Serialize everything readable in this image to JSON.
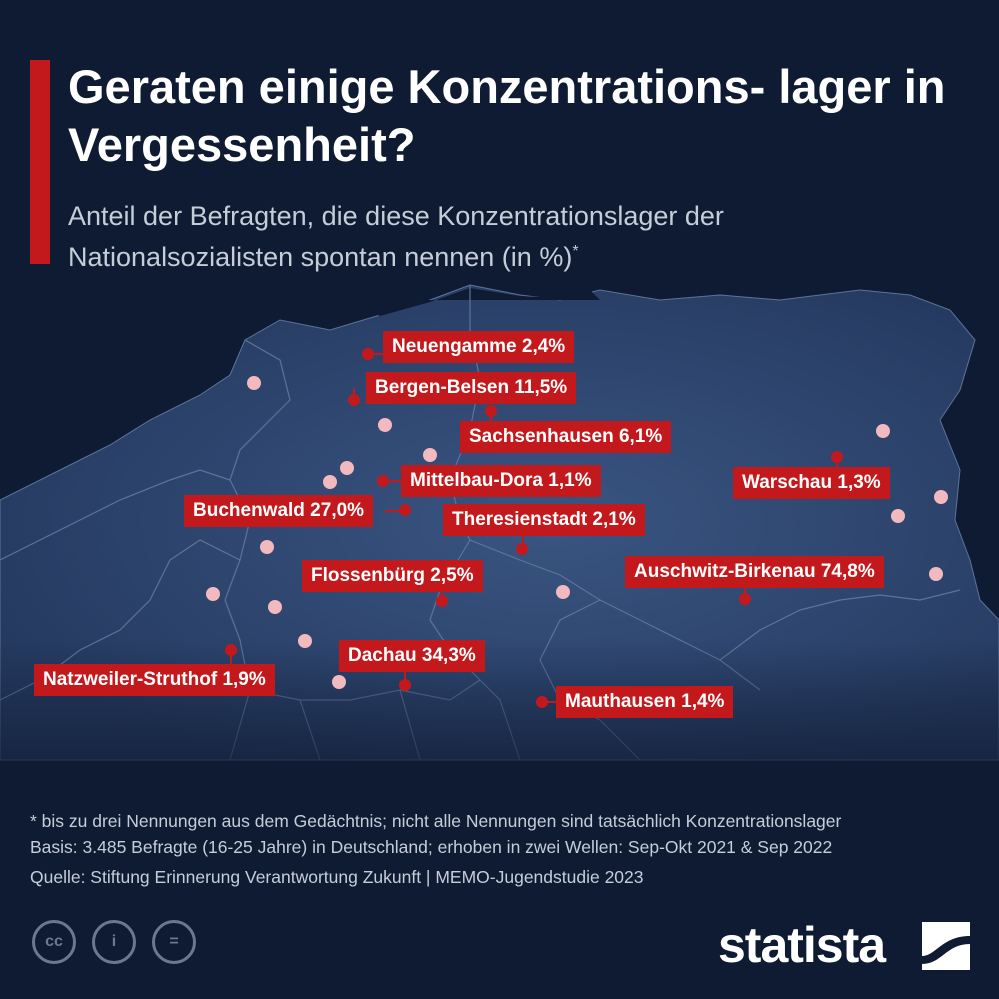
{
  "header": {
    "title": "Geraten einige Konzentrations- lager in Vergessenheit?",
    "subtitle": "Anteil der Befragten, die diese Konzentrationslager der Nationalsozialisten spontan nennen (in %)",
    "subtitle_mark": "*"
  },
  "camps": [
    {
      "name": "Neuengamme",
      "value": 2.4,
      "label": "Neuengamme 2,4%"
    },
    {
      "name": "Bergen-Belsen",
      "value": 11.5,
      "label": "Bergen-Belsen 11,5%"
    },
    {
      "name": "Sachsenhausen",
      "value": 6.1,
      "label": "Sachsenhausen 6,1%"
    },
    {
      "name": "Mittelbau-Dora",
      "value": 1.1,
      "label": "Mittelbau-Dora 1,1%"
    },
    {
      "name": "Buchenwald",
      "value": 27.0,
      "label": "Buchenwald 27,0%"
    },
    {
      "name": "Theresienstadt",
      "value": 2.1,
      "label": "Theresienstadt 2,1%"
    },
    {
      "name": "Flossenbürg",
      "value": 2.5,
      "label": "Flossenbürg 2,5%"
    },
    {
      "name": "Warschau",
      "value": 1.3,
      "label": "Warschau 1,3%"
    },
    {
      "name": "Auschwitz-Birkenau",
      "value": 74.8,
      "label": "Auschwitz-Birkenau 74,8%"
    },
    {
      "name": "Dachau",
      "value": 34.3,
      "label": "Dachau 34,3%"
    },
    {
      "name": "Natzweiler-Struthof",
      "value": 1.9,
      "label": "Natzweiler-Struthof 1,9%"
    },
    {
      "name": "Mauthausen",
      "value": 1.4,
      "label": "Mauthausen 1,4%"
    }
  ],
  "footer": {
    "note": "* bis zu drei Nennungen aus dem Gedächtnis; nicht alle Nennungen sind tatsächlich Konzentrationslager",
    "basis": "Basis: 3.485 Befragte (16-25 Jahre) in Deutschland; erhoben in zwei Wellen: Sep-Okt 2021 & Sep 2022",
    "source": "Quelle: Stiftung Erinnerung Verantwortung Zukunft | MEMO-Jugendstudie 2023"
  },
  "license_icons": [
    {
      "name": "cc-icon",
      "glyph": "cc"
    },
    {
      "name": "attribution-icon",
      "glyph": "i"
    },
    {
      "name": "no-derivatives-icon",
      "glyph": "="
    }
  ],
  "brand": {
    "name": "statista"
  },
  "colors": {
    "background": "#0f1b33",
    "land": "#2b3f66",
    "accent": "#c4191c",
    "minor_city_dot": "#f2b9be"
  }
}
